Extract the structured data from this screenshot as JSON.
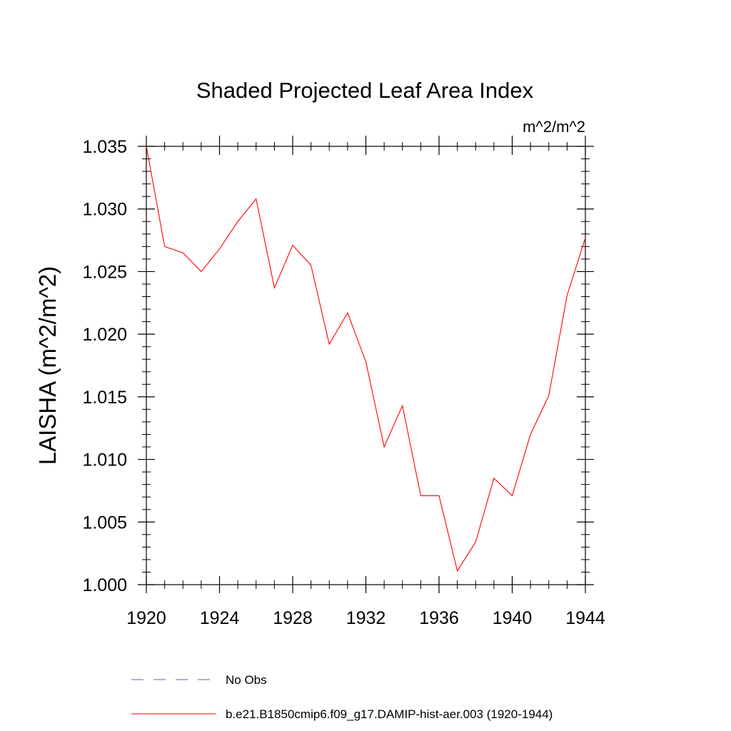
{
  "chart_data": {
    "type": "line",
    "title": "Shaded Projected Leaf Area Index",
    "units": "m^2/m^2",
    "ylabel": "LAISHA  (m^2/m^2)",
    "xlabel": "",
    "xlim": [
      1920,
      1944
    ],
    "ylim": [
      1.0,
      1.035
    ],
    "x_ticks": [
      1920,
      1924,
      1928,
      1932,
      1936,
      1940,
      1944
    ],
    "x_tick_labels": [
      "1920",
      "1924",
      "1928",
      "1932",
      "1936",
      "1940",
      "1944"
    ],
    "y_ticks": [
      1.0,
      1.005,
      1.01,
      1.015,
      1.02,
      1.025,
      1.03,
      1.035
    ],
    "y_tick_labels": [
      "1.000",
      "1.005",
      "1.010",
      "1.015",
      "1.020",
      "1.025",
      "1.030",
      "1.035"
    ],
    "x": [
      1920,
      1921,
      1922,
      1923,
      1924,
      1925,
      1926,
      1927,
      1928,
      1929,
      1930,
      1931,
      1932,
      1933,
      1934,
      1935,
      1936,
      1937,
      1938,
      1939,
      1940,
      1941,
      1942,
      1943,
      1944
    ],
    "series": [
      {
        "name": "b.e21.B1850cmip6.f09_g17.DAMIP-hist-aer.003 (1920-1944)",
        "color": "#ff0000",
        "values": [
          1.035,
          1.027,
          1.0265,
          1.025,
          1.0268,
          1.029,
          1.0308,
          1.0237,
          1.0271,
          1.0255,
          1.0192,
          1.0217,
          1.0178,
          1.011,
          1.0143,
          1.0071,
          1.0071,
          1.0011,
          1.0034,
          1.0085,
          1.0071,
          1.012,
          1.0151,
          1.0231,
          1.0277
        ]
      }
    ],
    "legend": [
      {
        "label": "No Obs",
        "color": "#6a5acd",
        "style": "dashed"
      },
      {
        "label": "b.e21.B1850cmip6.f09_g17.DAMIP-hist-aer.003 (1920-1944)",
        "color": "#ff0000",
        "style": "solid"
      }
    ],
    "grid": false,
    "legend_position": "bottom"
  }
}
